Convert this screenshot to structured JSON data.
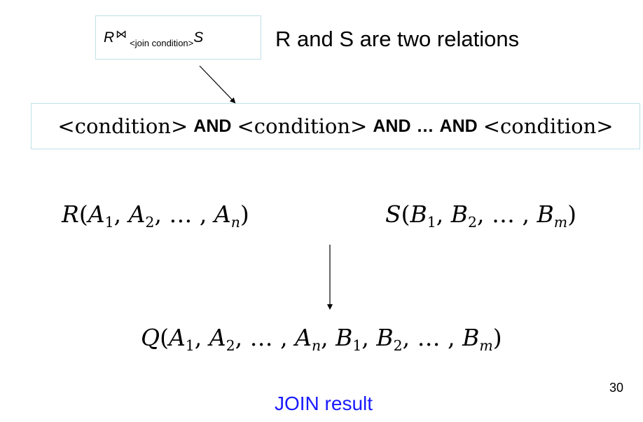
{
  "join_notation": {
    "left": "R",
    "operator": "⋈",
    "subscript": "<join condition>",
    "right": "S"
  },
  "relations_note": "R and S are two relations",
  "condition_expr": {
    "condition": "<condition>",
    "and": "AND",
    "ellipsis": "…"
  },
  "relation_r": {
    "name": "R",
    "attr": "A",
    "subs": [
      "1",
      "2",
      "n"
    ]
  },
  "relation_s": {
    "name": "S",
    "attr": "B",
    "subs": [
      "1",
      "2",
      "m"
    ]
  },
  "result_q": {
    "name": "Q"
  },
  "slide_number": "30",
  "result_label": "JOIN result",
  "colors": {
    "box_border": "#bfe0e8",
    "result_label": "#1a1aff"
  }
}
